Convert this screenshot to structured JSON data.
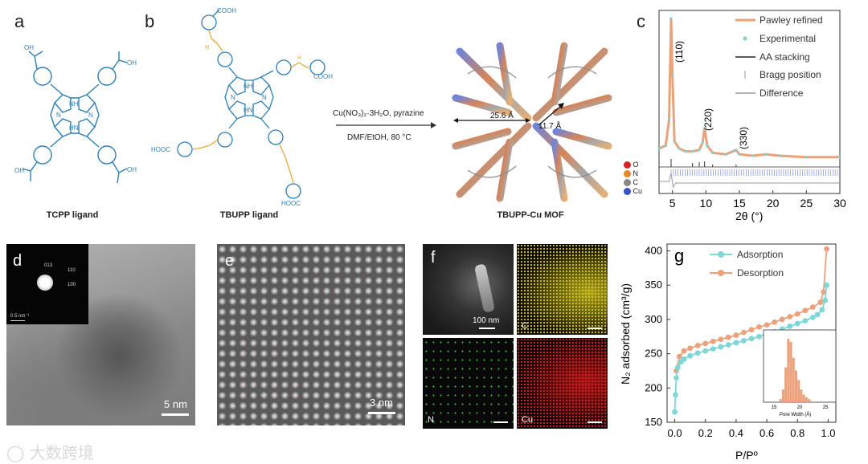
{
  "panels": {
    "a": {
      "letter": "a",
      "caption": "TCPP ligand",
      "groups": {
        "cooh_top": "OH",
        "cooh_right": "OH",
        "cooh_bottom_left": "OH",
        "cooh_bottom_right": "OH",
        "nh": "NH",
        "hn": "HN",
        "n1": "N",
        "n2": "N"
      }
    },
    "b": {
      "letter": "b",
      "caption": "TBUPP ligand",
      "groups": {
        "top": "COOH",
        "right": "COOH",
        "left": "HOOC",
        "bottom": "HOOC",
        "nh": "NH",
        "hn": "HN",
        "n1": "N",
        "n2": "N",
        "h": "H",
        "nh_urea": "N"
      }
    },
    "reaction": {
      "line1": "Cu(NO₃)₂·3H₂O, pyrazine",
      "line2": "DMF/EtOH, 80 °C"
    },
    "mof": {
      "caption": "TBUPP-Cu MOF",
      "dim1": "25.6 Å",
      "dim2": "11.7 Å"
    },
    "c": {
      "letter": "c",
      "legend": [
        "Pawley refined",
        "Experimental",
        "AA stacking",
        "Bragg position",
        "Difference"
      ],
      "atoms": [
        "O",
        "N",
        "C",
        "Cu"
      ],
      "peaks": [
        "(110)",
        "(220)",
        "(330)"
      ],
      "xlabel": "2θ (°)",
      "xticks": [
        "5",
        "10",
        "15",
        "20",
        "25",
        "30"
      ]
    },
    "d": {
      "letter": "d",
      "scale": "5 nm",
      "inset": {
        "r1": "013",
        "r2": "110",
        "r3": "100",
        "scale": "0.5 nm⁻¹"
      }
    },
    "e": {
      "letter": "e",
      "scale": "3 nm"
    },
    "f": {
      "letter": "f",
      "scale": "100 nm",
      "elements": [
        "C",
        "N",
        "Cu"
      ]
    },
    "g": {
      "letter": "g",
      "ylabel": "N₂ adsorbed (cm³/g)",
      "xlabel": "P/Pº",
      "legend": [
        "Adsorption",
        "Desorption"
      ],
      "inset": {
        "xlabel": "Pore Width (Å)",
        "xticks": [
          "15",
          "20",
          "25"
        ]
      }
    }
  },
  "watermark": "大数跨境",
  "colors": {
    "ligand_blue": "#2e7fb5",
    "urea_orange": "#e9a83a",
    "pawley": "#e9a27a",
    "experimental": "#7fd0cf",
    "adsorption": "#7fd6d6",
    "desorption": "#eba27c"
  },
  "chart_data": [
    {
      "type": "line",
      "title": "",
      "xlabel": "2θ (°)",
      "xlim": [
        3,
        30
      ],
      "series": [
        {
          "name": "Pawley refined",
          "x": [
            3,
            4,
            4.5,
            4.8,
            5,
            5.3,
            6,
            7,
            8,
            9,
            9.5,
            9.8,
            10.2,
            11,
            13,
            14,
            14.5,
            15,
            17,
            19,
            21,
            25,
            30
          ],
          "y": [
            0.1,
            0.12,
            0.3,
            1.0,
            0.6,
            0.15,
            0.1,
            0.08,
            0.08,
            0.09,
            0.14,
            0.24,
            0.12,
            0.07,
            0.06,
            0.08,
            0.09,
            0.06,
            0.05,
            0.06,
            0.05,
            0.04,
            0.04
          ]
        },
        {
          "name": "Experimental",
          "x": [
            3,
            4,
            4.5,
            4.8,
            5,
            5.3,
            6,
            7,
            8,
            9,
            9.5,
            9.8,
            10.2,
            11,
            13,
            14,
            14.5,
            15,
            17,
            19,
            21,
            25,
            30
          ],
          "y": [
            0.1,
            0.12,
            0.3,
            1.0,
            0.6,
            0.15,
            0.1,
            0.08,
            0.08,
            0.09,
            0.14,
            0.24,
            0.12,
            0.07,
            0.06,
            0.08,
            0.09,
            0.06,
            0.05,
            0.06,
            0.05,
            0.04,
            0.04
          ]
        }
      ]
    },
    {
      "type": "line",
      "xlabel": "P/Pº",
      "ylabel": "N₂ adsorbed (cm³/g)",
      "xlim": [
        -0.05,
        1.05
      ],
      "ylim": [
        150,
        410
      ],
      "xticks": [
        0.0,
        0.2,
        0.4,
        0.6,
        0.8,
        1.0
      ],
      "yticks": [
        150,
        200,
        250,
        300,
        350,
        400
      ],
      "series": [
        {
          "name": "Adsorption",
          "x": [
            0.0,
            0.005,
            0.01,
            0.02,
            0.04,
            0.06,
            0.1,
            0.15,
            0.2,
            0.25,
            0.3,
            0.35,
            0.4,
            0.45,
            0.5,
            0.55,
            0.6,
            0.65,
            0.7,
            0.75,
            0.8,
            0.85,
            0.9,
            0.93,
            0.96,
            0.98,
            0.99
          ],
          "y": [
            165,
            190,
            215,
            230,
            238,
            242,
            247,
            251,
            254,
            257,
            260,
            263,
            266,
            269,
            272,
            275,
            279,
            282,
            286,
            290,
            294,
            298,
            303,
            307,
            314,
            328,
            350
          ]
        },
        {
          "name": "Desorption",
          "x": [
            0.99,
            0.97,
            0.95,
            0.9,
            0.85,
            0.8,
            0.75,
            0.7,
            0.65,
            0.6,
            0.55,
            0.5,
            0.45,
            0.4,
            0.35,
            0.3,
            0.25,
            0.2,
            0.15,
            0.1,
            0.06,
            0.03,
            0.01
          ],
          "y": [
            403,
            340,
            325,
            318,
            313,
            308,
            304,
            300,
            296,
            292,
            289,
            285,
            281,
            277,
            274,
            271,
            268,
            265,
            262,
            258,
            254,
            246,
            225
          ]
        }
      ]
    },
    {
      "type": "bar",
      "xlabel": "Pore Width (Å)",
      "x": [
        16.3,
        16.8,
        17.3,
        17.8,
        18.3,
        18.8,
        19.3,
        19.8,
        20.3,
        20.8,
        21.3,
        21.8,
        22.3
      ],
      "values": [
        0.05,
        0.2,
        0.55,
        1.0,
        0.95,
        0.7,
        0.5,
        0.35,
        0.2,
        0.12,
        0.08,
        0.05,
        0.02
      ]
    }
  ]
}
